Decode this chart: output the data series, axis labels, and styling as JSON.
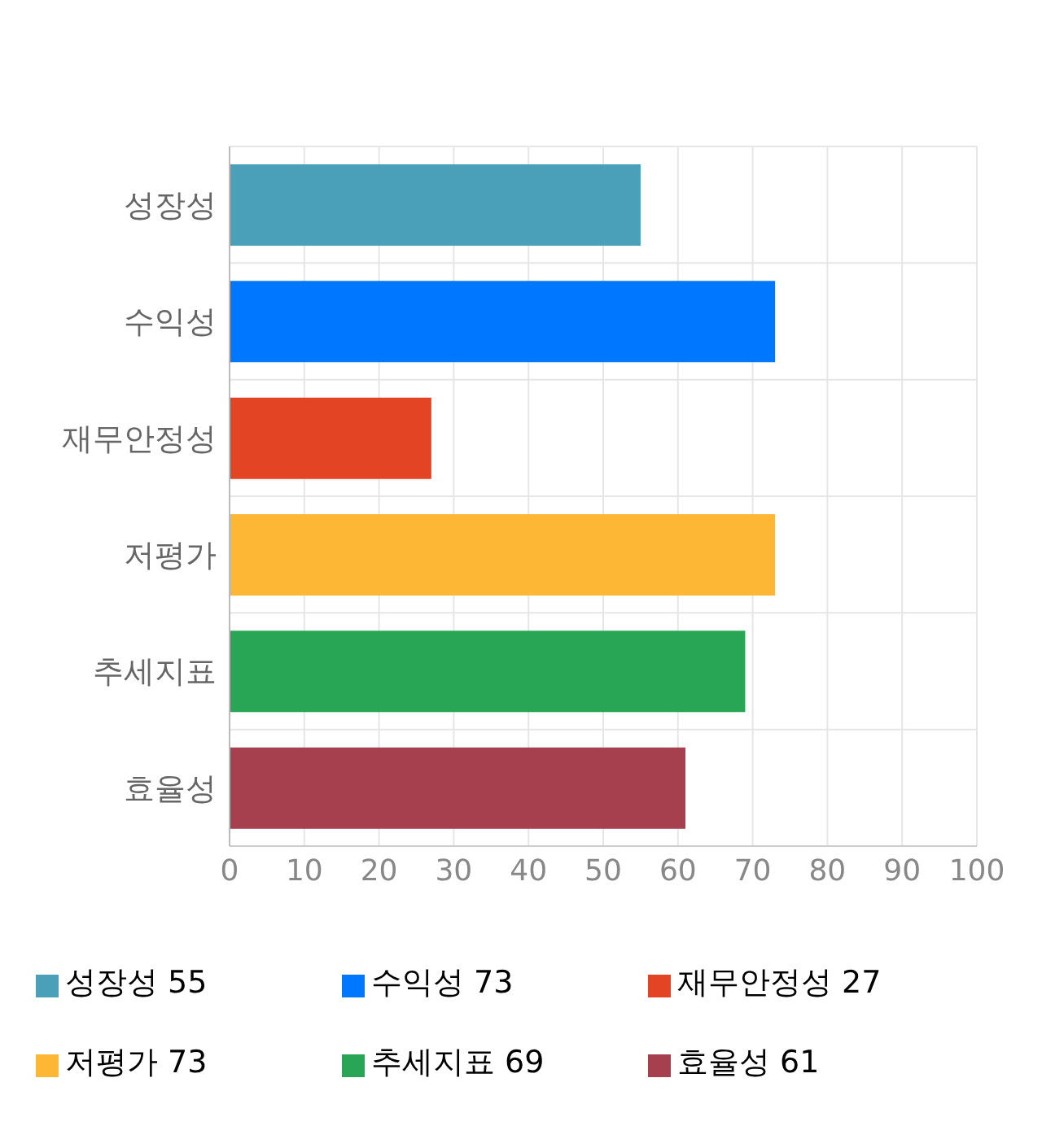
{
  "chart_data": {
    "type": "bar",
    "orientation": "horizontal",
    "stacked": true,
    "categories": [
      "성장성",
      "수익성",
      "재무안정성",
      "저평가",
      "추세지표",
      "효율성"
    ],
    "series": [
      {
        "name": "성장성",
        "color": "#4aa0b9",
        "values": [
          55,
          null,
          null,
          null,
          null,
          null
        ]
      },
      {
        "name": "수익성",
        "color": "#0077ff",
        "values": [
          null,
          73,
          null,
          null,
          null,
          null
        ]
      },
      {
        "name": "재무안정성",
        "color": "#e34524",
        "values": [
          null,
          null,
          27,
          null,
          null,
          null
        ]
      },
      {
        "name": "저평가",
        "color": "#fdb734",
        "values": [
          null,
          null,
          null,
          73,
          null,
          null
        ]
      },
      {
        "name": "추세지표",
        "color": "#28a655",
        "values": [
          null,
          null,
          null,
          null,
          69,
          null
        ]
      },
      {
        "name": "효율성",
        "color": "#a6404e",
        "values": [
          null,
          null,
          null,
          null,
          null,
          61
        ]
      }
    ],
    "annotations": [
      "55",
      "73",
      "27",
      "73",
      "69",
      "61"
    ],
    "xlim": [
      0,
      100
    ],
    "xticks": [
      0,
      10,
      20,
      30,
      40,
      50,
      60,
      70,
      80,
      90,
      100
    ],
    "grid": true,
    "legend": "bottom"
  }
}
